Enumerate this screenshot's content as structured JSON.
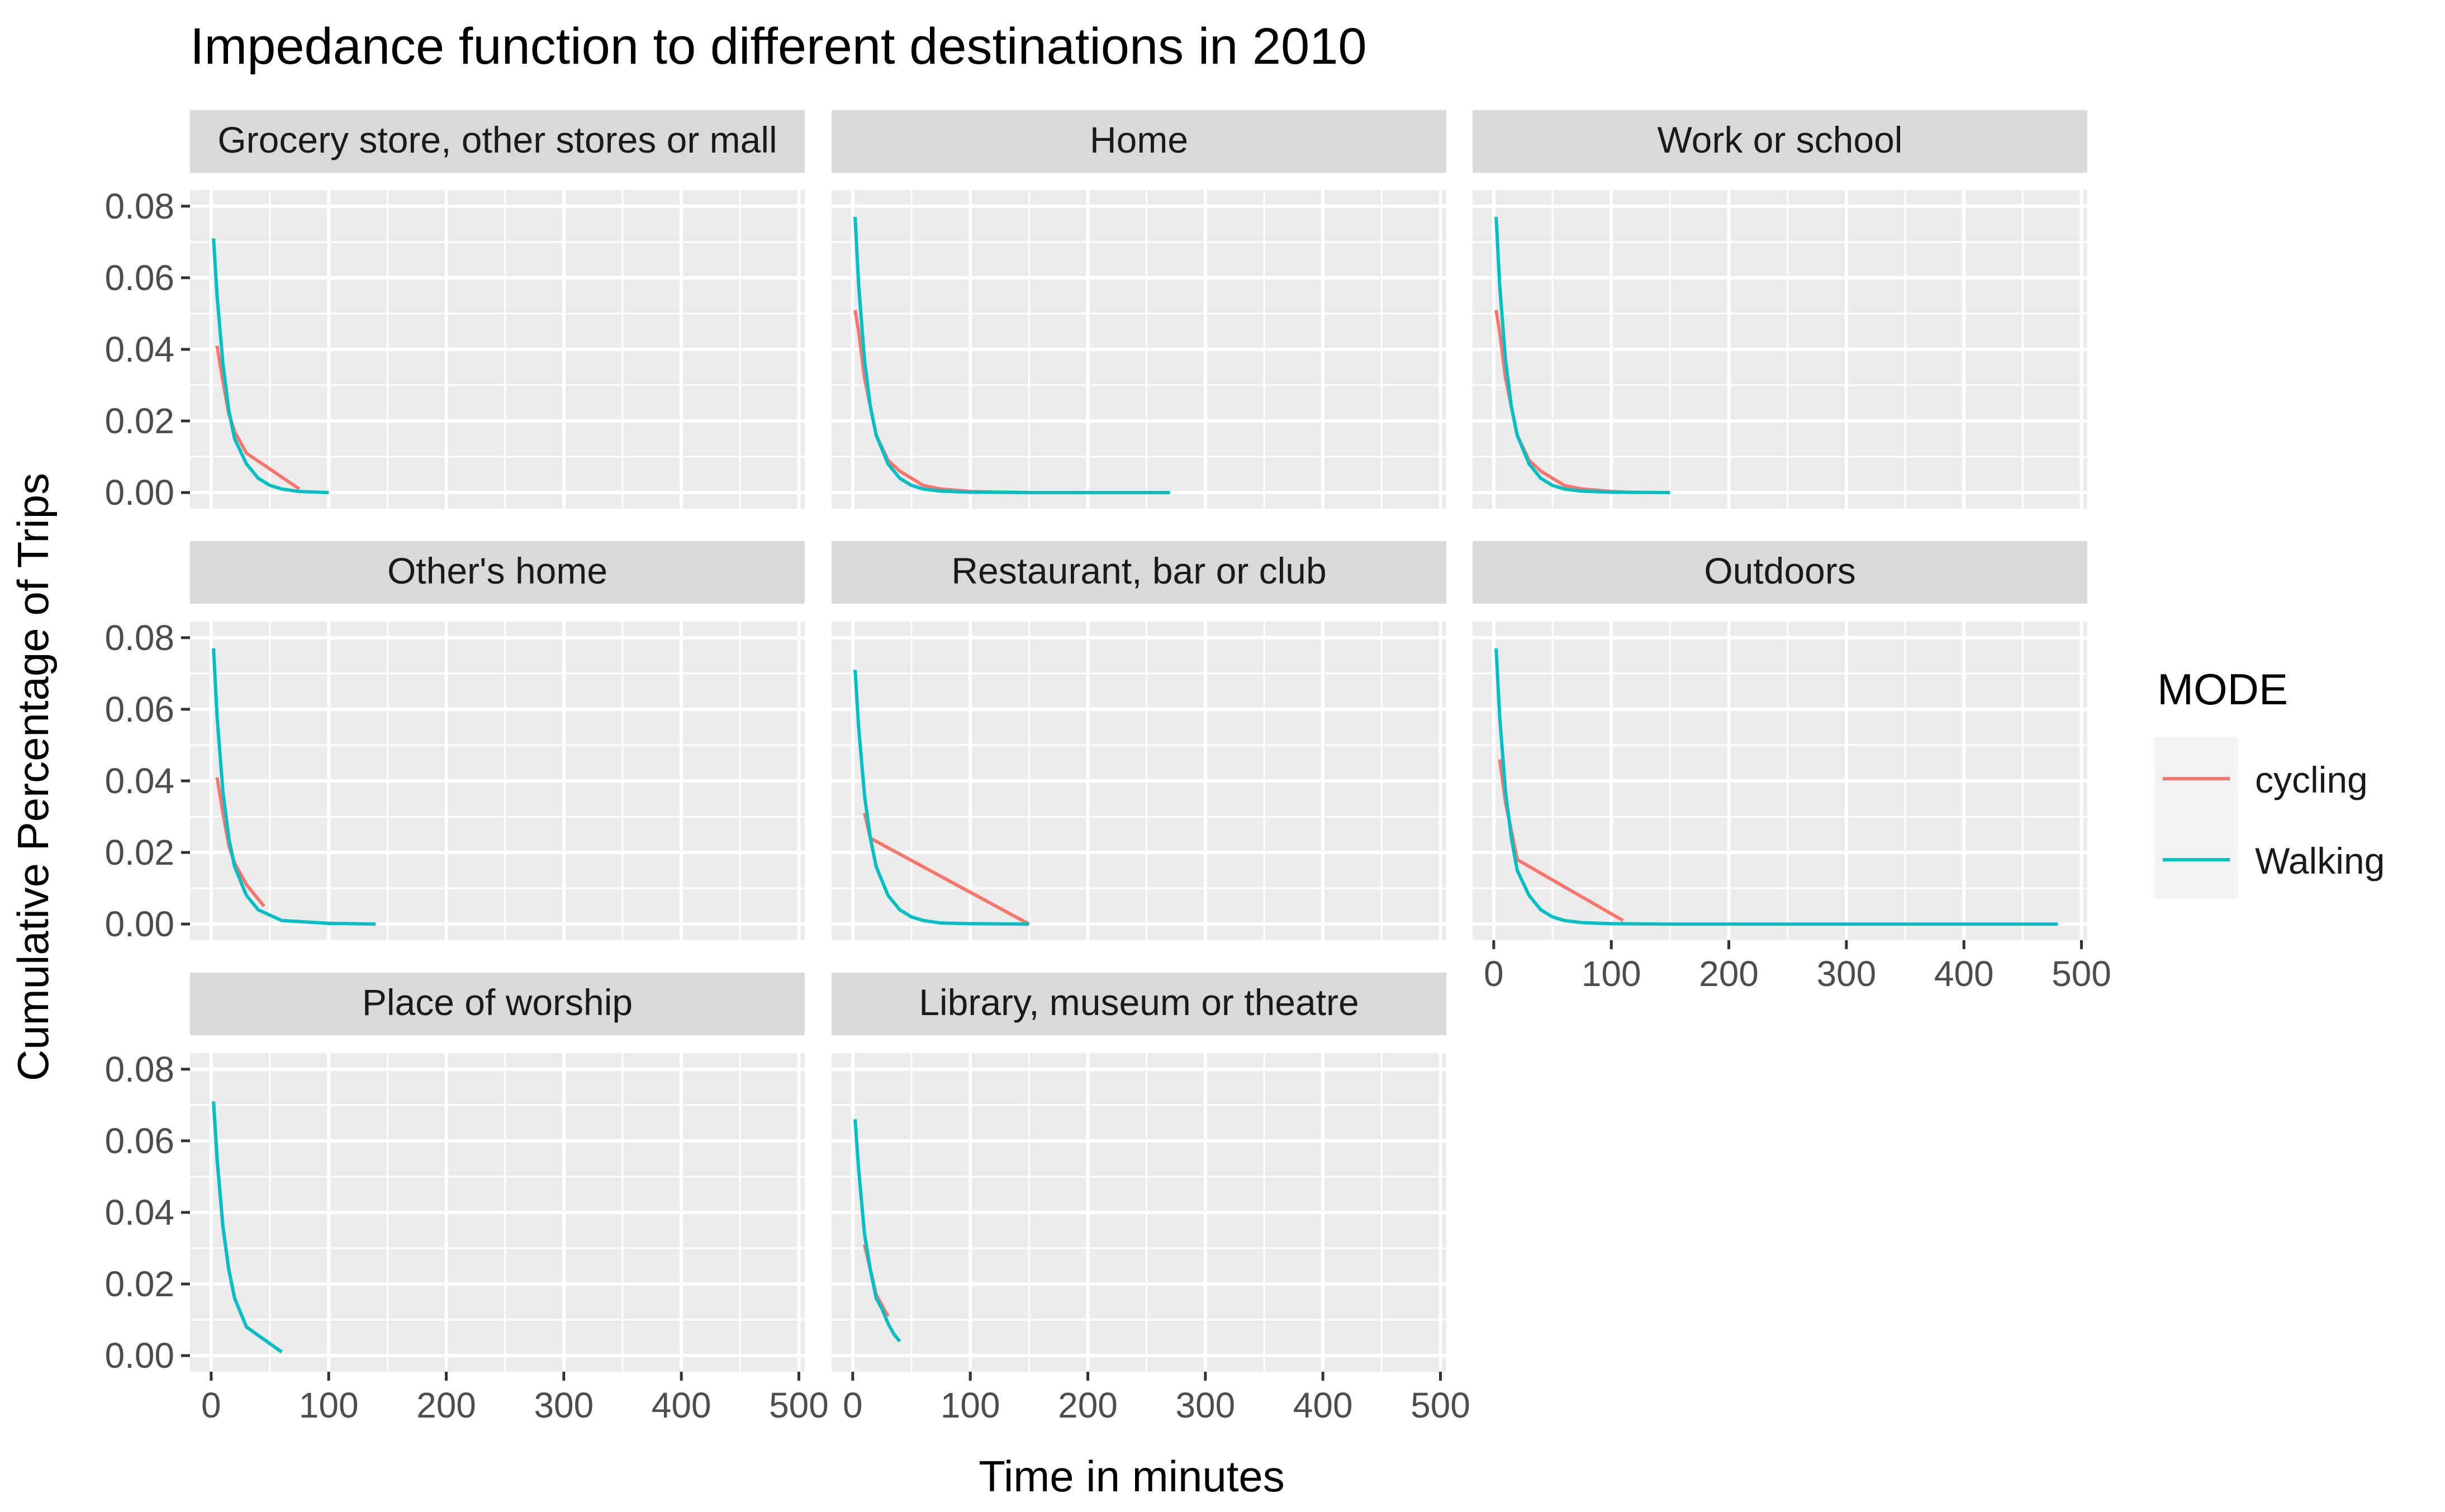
{
  "chart_data": {
    "type": "line",
    "title": "Impedance function to different destinations in 2010",
    "xlabel": "Time in minutes",
    "ylabel": "Cumulative Percentage of Trips",
    "xlim": [
      -18,
      505
    ],
    "ylim": [
      -0.0045,
      0.0845
    ],
    "x_ticks": [
      0,
      100,
      200,
      300,
      400,
      500
    ],
    "y_ticks": [
      0.0,
      0.02,
      0.04,
      0.06,
      0.08
    ],
    "x_tick_labels": [
      "0",
      "100",
      "200",
      "300",
      "400",
      "500"
    ],
    "y_tick_labels": [
      "0.00",
      "0.02",
      "0.04",
      "0.06",
      "0.08"
    ],
    "grid": true,
    "legend": {
      "title": "MODE",
      "position": "right",
      "entries": [
        {
          "label": "cycling",
          "color": "#F8766D"
        },
        {
          "label": "Walking",
          "color": "#00BFC4"
        }
      ]
    },
    "colors": {
      "cycling": "#F8766D",
      "Walking": "#00BFC4",
      "panel_background": "#EBEBEB",
      "strip_background": "#D9D9D9",
      "grid": "#FFFFFF"
    },
    "panels": [
      {
        "title": "Grocery store, other stores or mall",
        "series": [
          {
            "name": "cycling",
            "points": [
              [
                5,
                0.041
              ],
              [
                10,
                0.031
              ],
              [
                15,
                0.022
              ],
              [
                20,
                0.017
              ],
              [
                30,
                0.011
              ],
              [
                75,
                0.001
              ]
            ]
          },
          {
            "name": "Walking",
            "points": [
              [
                2,
                0.071
              ],
              [
                5,
                0.055
              ],
              [
                10,
                0.036
              ],
              [
                15,
                0.023
              ],
              [
                20,
                0.015
              ],
              [
                30,
                0.008
              ],
              [
                40,
                0.004
              ],
              [
                50,
                0.002
              ],
              [
                60,
                0.001
              ],
              [
                75,
                0.0003
              ],
              [
                100,
                0.0
              ]
            ]
          }
        ]
      },
      {
        "title": "Home",
        "series": [
          {
            "name": "cycling",
            "points": [
              [
                2,
                0.051
              ],
              [
                5,
                0.045
              ],
              [
                10,
                0.032
              ],
              [
                15,
                0.024
              ],
              [
                20,
                0.016
              ],
              [
                30,
                0.009
              ],
              [
                40,
                0.006
              ],
              [
                50,
                0.004
              ],
              [
                60,
                0.002
              ],
              [
                75,
                0.001
              ],
              [
                100,
                0.0003
              ],
              [
                150,
                0.0
              ]
            ]
          },
          {
            "name": "Walking",
            "points": [
              [
                2,
                0.077
              ],
              [
                5,
                0.058
              ],
              [
                10,
                0.037
              ],
              [
                15,
                0.024
              ],
              [
                20,
                0.016
              ],
              [
                30,
                0.008
              ],
              [
                40,
                0.004
              ],
              [
                50,
                0.002
              ],
              [
                60,
                0.001
              ],
              [
                75,
                0.0004
              ],
              [
                100,
                0.0001
              ],
              [
                150,
                0.0
              ],
              [
                270,
                0.0
              ]
            ]
          }
        ]
      },
      {
        "title": "Work or school",
        "series": [
          {
            "name": "cycling",
            "points": [
              [
                2,
                0.051
              ],
              [
                5,
                0.045
              ],
              [
                10,
                0.032
              ],
              [
                15,
                0.024
              ],
              [
                20,
                0.016
              ],
              [
                30,
                0.009
              ],
              [
                40,
                0.006
              ],
              [
                50,
                0.004
              ],
              [
                60,
                0.002
              ],
              [
                75,
                0.001
              ],
              [
                100,
                0.0003
              ],
              [
                120,
                0.0
              ]
            ]
          },
          {
            "name": "Walking",
            "points": [
              [
                2,
                0.077
              ],
              [
                5,
                0.058
              ],
              [
                10,
                0.037
              ],
              [
                15,
                0.024
              ],
              [
                20,
                0.016
              ],
              [
                30,
                0.008
              ],
              [
                40,
                0.004
              ],
              [
                50,
                0.002
              ],
              [
                60,
                0.001
              ],
              [
                75,
                0.0004
              ],
              [
                100,
                0.0001
              ],
              [
                150,
                0.0
              ]
            ]
          }
        ]
      },
      {
        "title": "Other's home",
        "series": [
          {
            "name": "cycling",
            "points": [
              [
                5,
                0.041
              ],
              [
                10,
                0.031
              ],
              [
                15,
                0.022
              ],
              [
                20,
                0.017
              ],
              [
                30,
                0.011
              ],
              [
                45,
                0.005
              ]
            ]
          },
          {
            "name": "Walking",
            "points": [
              [
                2,
                0.077
              ],
              [
                5,
                0.058
              ],
              [
                10,
                0.037
              ],
              [
                15,
                0.024
              ],
              [
                20,
                0.016
              ],
              [
                30,
                0.008
              ],
              [
                40,
                0.004
              ],
              [
                60,
                0.001
              ],
              [
                100,
                0.0002
              ],
              [
                140,
                0.0
              ]
            ]
          }
        ]
      },
      {
        "title": "Restaurant, bar or club",
        "series": [
          {
            "name": "cycling",
            "points": [
              [
                10,
                0.031
              ],
              [
                15,
                0.024
              ],
              [
                150,
                0.0
              ]
            ]
          },
          {
            "name": "Walking",
            "points": [
              [
                2,
                0.071
              ],
              [
                5,
                0.055
              ],
              [
                10,
                0.036
              ],
              [
                15,
                0.024
              ],
              [
                20,
                0.016
              ],
              [
                30,
                0.008
              ],
              [
                40,
                0.004
              ],
              [
                50,
                0.002
              ],
              [
                60,
                0.001
              ],
              [
                75,
                0.0003
              ],
              [
                100,
                0.0001
              ],
              [
                150,
                0.0
              ]
            ]
          }
        ]
      },
      {
        "title": "Outdoors",
        "series": [
          {
            "name": "cycling",
            "points": [
              [
                5,
                0.046
              ],
              [
                10,
                0.034
              ],
              [
                20,
                0.018
              ],
              [
                110,
                0.001
              ]
            ]
          },
          {
            "name": "Walking",
            "points": [
              [
                2,
                0.077
              ],
              [
                5,
                0.058
              ],
              [
                10,
                0.037
              ],
              [
                15,
                0.024
              ],
              [
                20,
                0.015
              ],
              [
                30,
                0.008
              ],
              [
                40,
                0.004
              ],
              [
                50,
                0.002
              ],
              [
                60,
                0.001
              ],
              [
                75,
                0.0004
              ],
              [
                100,
                0.0001
              ],
              [
                150,
                0.0
              ],
              [
                480,
                0.0
              ]
            ]
          }
        ]
      },
      {
        "title": "Place of worship",
        "series": [
          {
            "name": "cycling",
            "points": [
              [
                2,
                0.071
              ],
              [
                5,
                0.055
              ],
              [
                10,
                0.036
              ],
              [
                15,
                0.024
              ],
              [
                20,
                0.016
              ],
              [
                30,
                0.008
              ],
              [
                60,
                0.001
              ]
            ]
          },
          {
            "name": "Walking",
            "points": [
              [
                2,
                0.071
              ],
              [
                5,
                0.055
              ],
              [
                10,
                0.036
              ],
              [
                15,
                0.024
              ],
              [
                20,
                0.016
              ],
              [
                30,
                0.008
              ],
              [
                60,
                0.001
              ]
            ]
          }
        ]
      },
      {
        "title": "Library, museum or theatre",
        "series": [
          {
            "name": "cycling",
            "points": [
              [
                10,
                0.031
              ],
              [
                15,
                0.024
              ],
              [
                20,
                0.017
              ],
              [
                25,
                0.014
              ],
              [
                30,
                0.011
              ]
            ]
          },
          {
            "name": "Walking",
            "points": [
              [
                2,
                0.066
              ],
              [
                5,
                0.052
              ],
              [
                10,
                0.034
              ],
              [
                15,
                0.024
              ],
              [
                20,
                0.016
              ],
              [
                25,
                0.013
              ],
              [
                30,
                0.009
              ],
              [
                35,
                0.006
              ],
              [
                40,
                0.004
              ]
            ]
          }
        ]
      }
    ]
  }
}
